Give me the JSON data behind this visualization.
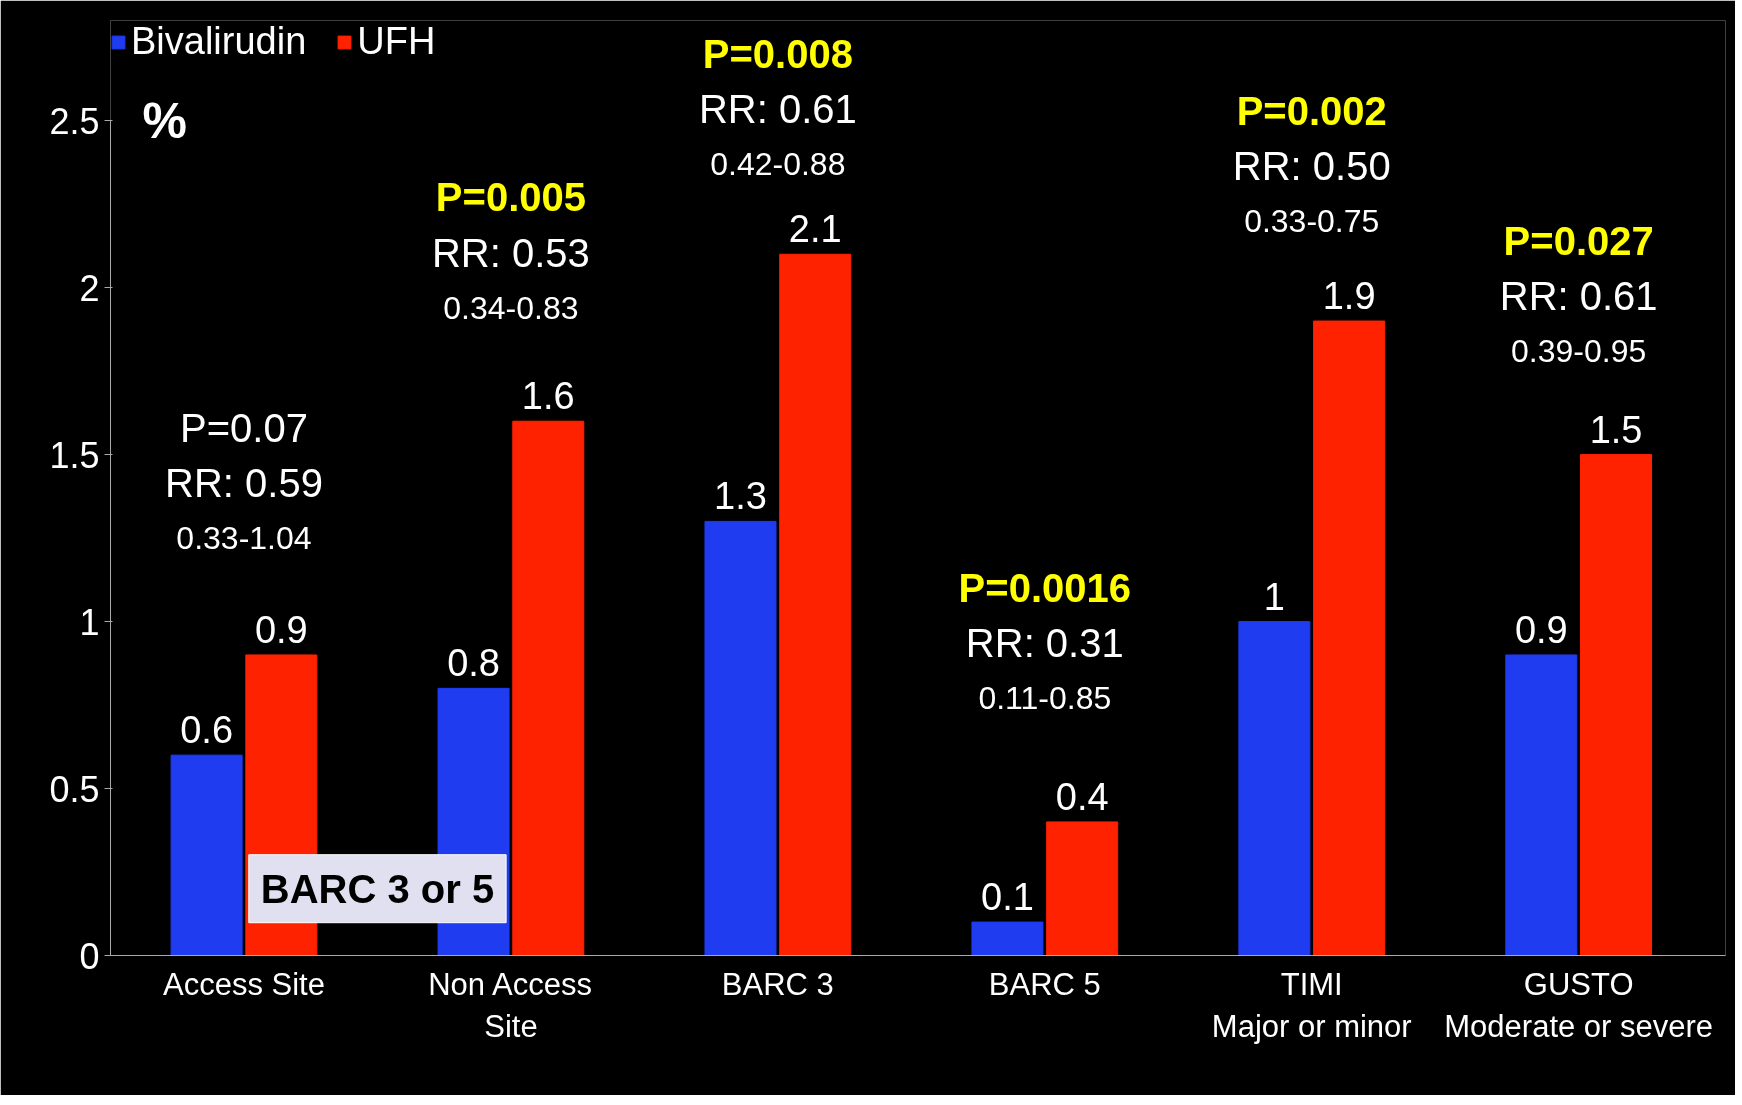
{
  "chart_data": {
    "type": "bar",
    "categories": [
      "Access Site",
      "Non Access\nSite",
      "BARC 3",
      "BARC 5",
      "TIMI\nMajor or minor",
      "GUSTO\nModerate or severe"
    ],
    "series": [
      {
        "name": "Bivalirudin",
        "color": "#1f3cf0",
        "values": [
          0.6,
          0.8,
          1.3,
          0.1,
          1.0,
          0.9
        ]
      },
      {
        "name": "UFH",
        "color": "#ff2200",
        "values": [
          0.9,
          1.6,
          2.1,
          0.4,
          1.9,
          1.5
        ]
      }
    ],
    "ylabel": "%",
    "ylim": [
      0,
      2.8
    ],
    "yticks": [
      0,
      0.5,
      1,
      1.5,
      2,
      2.5
    ],
    "data_labels": true,
    "grid": false,
    "legend": "top left",
    "annotations": [
      "P=0.07",
      "RR: 0.59",
      "0.33-1.04",
      "P=0.005",
      "RR: 0.53",
      "0.34-0.83",
      "P=0.008",
      "RR: 0.61",
      "0.42-0.88",
      "P=0.0016",
      "RR: 0.31",
      "0.11-0.85",
      "P=0.002",
      "RR: 0.50",
      "0.33-0.75",
      "P=0.027",
      "RR: 0.61",
      "0.39-0.95",
      "BARC 3 or 5"
    ]
  }
}
